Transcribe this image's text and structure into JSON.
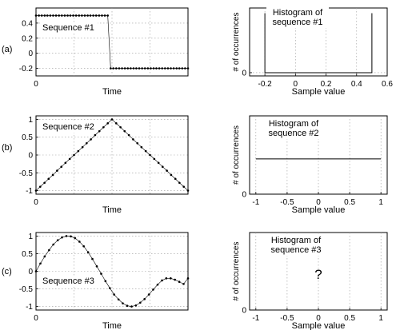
{
  "chart_data": [
    {
      "id": "a-left",
      "row_label": "(a)",
      "type": "scatter",
      "title": "Sequence #1",
      "xlabel": "Time",
      "ylabel": "",
      "xlim": [
        0,
        100
      ],
      "ylim": [
        -0.3,
        0.6
      ],
      "xticks": [
        0
      ],
      "xtick_labels": [
        "0"
      ],
      "xgrid": [
        0,
        25,
        50,
        75,
        100
      ],
      "yticks": [
        -0.2,
        0,
        0.2,
        0.4
      ],
      "ytick_labels": [
        "-0.2",
        "0",
        "0.2",
        "0.4"
      ],
      "grid": true,
      "series": [
        {
          "values_desc": "square step",
          "x": [
            0,
            1.9,
            3.8,
            5.7,
            7.5,
            9.4,
            11.3,
            13.2,
            15.1,
            17,
            18.9,
            20.8,
            22.6,
            24.5,
            26.4,
            28.3,
            30.2,
            32.1,
            34,
            35.8,
            37.7,
            39.6,
            41.5,
            43.4,
            45.3,
            47.2,
            49.1,
            50.9,
            52.8,
            54.7,
            56.6,
            58.5,
            60.4,
            62.3,
            64.2,
            66,
            67.9,
            69.8,
            71.7,
            73.6,
            75.5,
            77.4,
            79.2,
            81.1,
            83,
            84.9,
            86.8,
            88.7,
            90.6,
            92.5,
            94.3,
            96.2,
            98.1,
            100
          ],
          "y": [
            0.5,
            0.5,
            0.5,
            0.5,
            0.5,
            0.5,
            0.5,
            0.5,
            0.5,
            0.5,
            0.5,
            0.5,
            0.5,
            0.5,
            0.5,
            0.5,
            0.5,
            0.5,
            0.5,
            0.5,
            0.5,
            0.5,
            0.5,
            0.5,
            0.5,
            0.5,
            -0.2,
            -0.2,
            -0.2,
            -0.2,
            -0.2,
            -0.2,
            -0.2,
            -0.2,
            -0.2,
            -0.2,
            -0.2,
            -0.2,
            -0.2,
            -0.2,
            -0.2,
            -0.2,
            -0.2,
            -0.2,
            -0.2,
            -0.2,
            -0.2,
            -0.2,
            -0.2,
            -0.2,
            -0.2,
            -0.2,
            -0.2,
            -0.2
          ]
        }
      ]
    },
    {
      "id": "a-right",
      "row_label": "(a)",
      "type": "line",
      "title": "Histogram of\nsequence #1",
      "xlabel": "Sample value",
      "ylabel": "# of occurrences",
      "xlim": [
        -0.3,
        0.6
      ],
      "ylim": [
        -0.5,
        10
      ],
      "xticks": [
        -0.2,
        0,
        0.2,
        0.4,
        0.6
      ],
      "xtick_labels": [
        "-0.2",
        "0",
        "0.2",
        "0.4",
        "0.6"
      ],
      "xgrid": [
        -0.2,
        0,
        0.2,
        0.4
      ],
      "yticks": [
        0
      ],
      "ytick_labels": [
        "0"
      ],
      "grid": true,
      "series": [
        {
          "x": [
            -0.2,
            -0.2,
            0.5,
            0.5
          ],
          "y": [
            9.2,
            0,
            0,
            9.2
          ]
        }
      ]
    },
    {
      "id": "b-left",
      "row_label": "(b)",
      "type": "scatter",
      "title": "Sequence #2",
      "xlabel": "Time",
      "ylabel": "",
      "xlim": [
        0,
        100
      ],
      "ylim": [
        -1.1,
        1.1
      ],
      "xticks": [
        0
      ],
      "xtick_labels": [
        "0"
      ],
      "xgrid": [
        0,
        25,
        50,
        75,
        100
      ],
      "yticks": [
        -1,
        -0.5,
        0,
        0.5,
        1
      ],
      "ytick_labels": [
        "-1",
        "-0.5",
        "0",
        "0.5",
        "1"
      ],
      "grid": true,
      "series": [
        {
          "x": [
            0,
            2.8,
            5.6,
            8.3,
            11.1,
            13.9,
            16.7,
            19.4,
            22.2,
            25,
            27.8,
            30.6,
            33.3,
            36.1,
            38.9,
            41.7,
            44.4,
            47.2,
            50,
            52.8,
            55.6,
            58.3,
            61.1,
            63.9,
            66.7,
            69.4,
            72.2,
            75,
            77.8,
            80.6,
            83.3,
            86.1,
            88.9,
            91.7,
            94.4,
            97.2,
            100
          ],
          "y": [
            -1,
            -0.89,
            -0.78,
            -0.67,
            -0.56,
            -0.44,
            -0.33,
            -0.22,
            -0.11,
            0,
            0.11,
            0.22,
            0.33,
            0.44,
            0.56,
            0.67,
            0.78,
            0.89,
            1,
            0.89,
            0.78,
            0.67,
            0.56,
            0.44,
            0.33,
            0.22,
            0.11,
            0,
            -0.11,
            -0.22,
            -0.33,
            -0.44,
            -0.56,
            -0.67,
            -0.78,
            -0.89,
            -1
          ]
        }
      ]
    },
    {
      "id": "b-right",
      "row_label": "(b)",
      "type": "line",
      "title": "Histogram of\nsequence #2",
      "xlabel": "Sample value",
      "ylabel": "# of occurrences",
      "xlim": [
        -1.1,
        1.1
      ],
      "ylim": [
        0,
        10
      ],
      "xticks": [
        -1,
        -0.5,
        0,
        0.5,
        1
      ],
      "xtick_labels": [
        "-1",
        "-0.5",
        "0",
        "0.5",
        "1"
      ],
      "xgrid": [
        -1,
        -0.5,
        0,
        0.5,
        1
      ],
      "yticks": [
        0
      ],
      "ytick_labels": [
        "0"
      ],
      "grid": true,
      "series": [
        {
          "x": [
            -1,
            1
          ],
          "y": [
            4.5,
            4.5
          ]
        }
      ]
    },
    {
      "id": "c-left",
      "row_label": "(c)",
      "type": "scatter",
      "title": "Sequence #3",
      "xlabel": "Time",
      "ylabel": "",
      "xlim": [
        0,
        100
      ],
      "ylim": [
        -1.1,
        1.1
      ],
      "xticks": [
        0
      ],
      "xtick_labels": [
        "0"
      ],
      "xgrid": [
        0,
        25,
        50,
        75,
        100
      ],
      "yticks": [
        -1,
        -0.5,
        0,
        0.5,
        1
      ],
      "ytick_labels": [
        "-1",
        "-0.5",
        "0",
        "0.5",
        "1"
      ],
      "grid": true,
      "series": [
        {
          "x": [
            0,
            2.9,
            5.7,
            8.6,
            11.4,
            14.3,
            17.1,
            20,
            22.9,
            25.7,
            28.6,
            31.4,
            34.3,
            37.1,
            40,
            42.9,
            45.7,
            48.6,
            51.4,
            54.3,
            57.1,
            60,
            62.9,
            65.7,
            68.6,
            71.4,
            74.3,
            77.1,
            80,
            82.9,
            85.7,
            88.6,
            91.4,
            94.3,
            97.1,
            100
          ],
          "y": [
            0,
            0.22,
            0.42,
            0.6,
            0.76,
            0.88,
            0.96,
            1,
            0.99,
            0.94,
            0.84,
            0.71,
            0.54,
            0.35,
            0.14,
            -0.07,
            -0.28,
            -0.48,
            -0.66,
            -0.8,
            -0.91,
            -0.98,
            -1,
            -0.97,
            -0.89,
            -0.79,
            -0.66,
            -0.52,
            -0.38,
            -0.26,
            -0.2,
            -0.2,
            -0.24,
            -0.3,
            -0.36,
            -0.2
          ]
        }
      ]
    },
    {
      "id": "c-right",
      "row_label": "(c)",
      "type": "line",
      "title": "Histogram of\nsequence #3",
      "annotation": "?",
      "xlabel": "Sample value",
      "ylabel": "# of occurrences",
      "xlim": [
        -1.1,
        1.1
      ],
      "ylim": [
        0,
        10
      ],
      "xticks": [
        -1,
        -0.5,
        0,
        0.5,
        1
      ],
      "xtick_labels": [
        "-1",
        "-0.5",
        "0",
        "0.5",
        "1"
      ],
      "xgrid": [
        -1,
        -0.5,
        0,
        0.5,
        1
      ],
      "yticks": [
        0
      ],
      "ytick_labels": [
        "0"
      ],
      "grid": true,
      "series": []
    }
  ]
}
